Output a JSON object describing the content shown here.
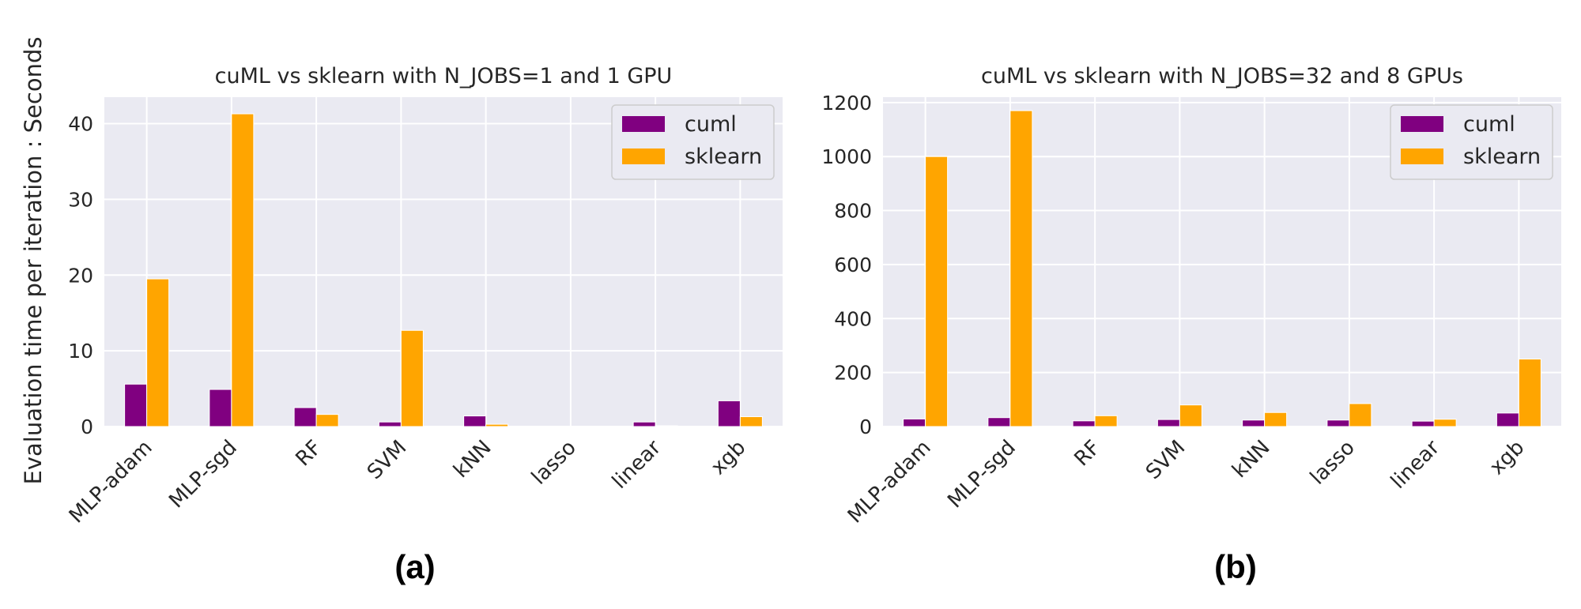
{
  "ylabel": "Evaluation time per iteration : Seconds",
  "colors": {
    "cuml": "#800080",
    "sklearn": "#FFA500",
    "plot_bg": "#EAEAF2",
    "grid": "#FFFFFF"
  },
  "chart_data": [
    {
      "type": "bar",
      "panel_label": "(a)",
      "title": "cuML vs sklearn with N_JOBS=1 and 1 GPU",
      "ylabel": "Evaluation time per iteration : Seconds",
      "xlabel": "",
      "categories": [
        "MLP-adam",
        "MLP-sgd",
        "RF",
        "SVM",
        "kNN",
        "lasso",
        "linear",
        "xgb"
      ],
      "series": [
        {
          "name": "cuml",
          "values": [
            5.6,
            4.9,
            2.5,
            0.6,
            1.4,
            0.05,
            0.6,
            3.4
          ]
        },
        {
          "name": "sklearn",
          "values": [
            19.5,
            41.3,
            1.6,
            12.7,
            0.3,
            0.05,
            0.1,
            1.3
          ]
        }
      ],
      "yticks": [
        0,
        10,
        20,
        30,
        40
      ],
      "ylim": [
        0,
        43.5
      ],
      "grid": true,
      "legend": "top-right"
    },
    {
      "type": "bar",
      "panel_label": "(b)",
      "title": "cuML vs sklearn with N_JOBS=32 and 8 GPUs",
      "ylabel": "",
      "xlabel": "",
      "categories": [
        "MLP-adam",
        "MLP-sgd",
        "RF",
        "SVM",
        "kNN",
        "lasso",
        "linear",
        "xgb"
      ],
      "series": [
        {
          "name": "cuml",
          "values": [
            28,
            33,
            21,
            26,
            24,
            24,
            20,
            50
          ]
        },
        {
          "name": "sklearn",
          "values": [
            1000,
            1170,
            40,
            80,
            52,
            85,
            27,
            250
          ]
        }
      ],
      "yticks": [
        0,
        200,
        400,
        600,
        800,
        1000,
        1200
      ],
      "ylim": [
        0,
        1220
      ],
      "grid": true,
      "legend": "top-right"
    }
  ]
}
